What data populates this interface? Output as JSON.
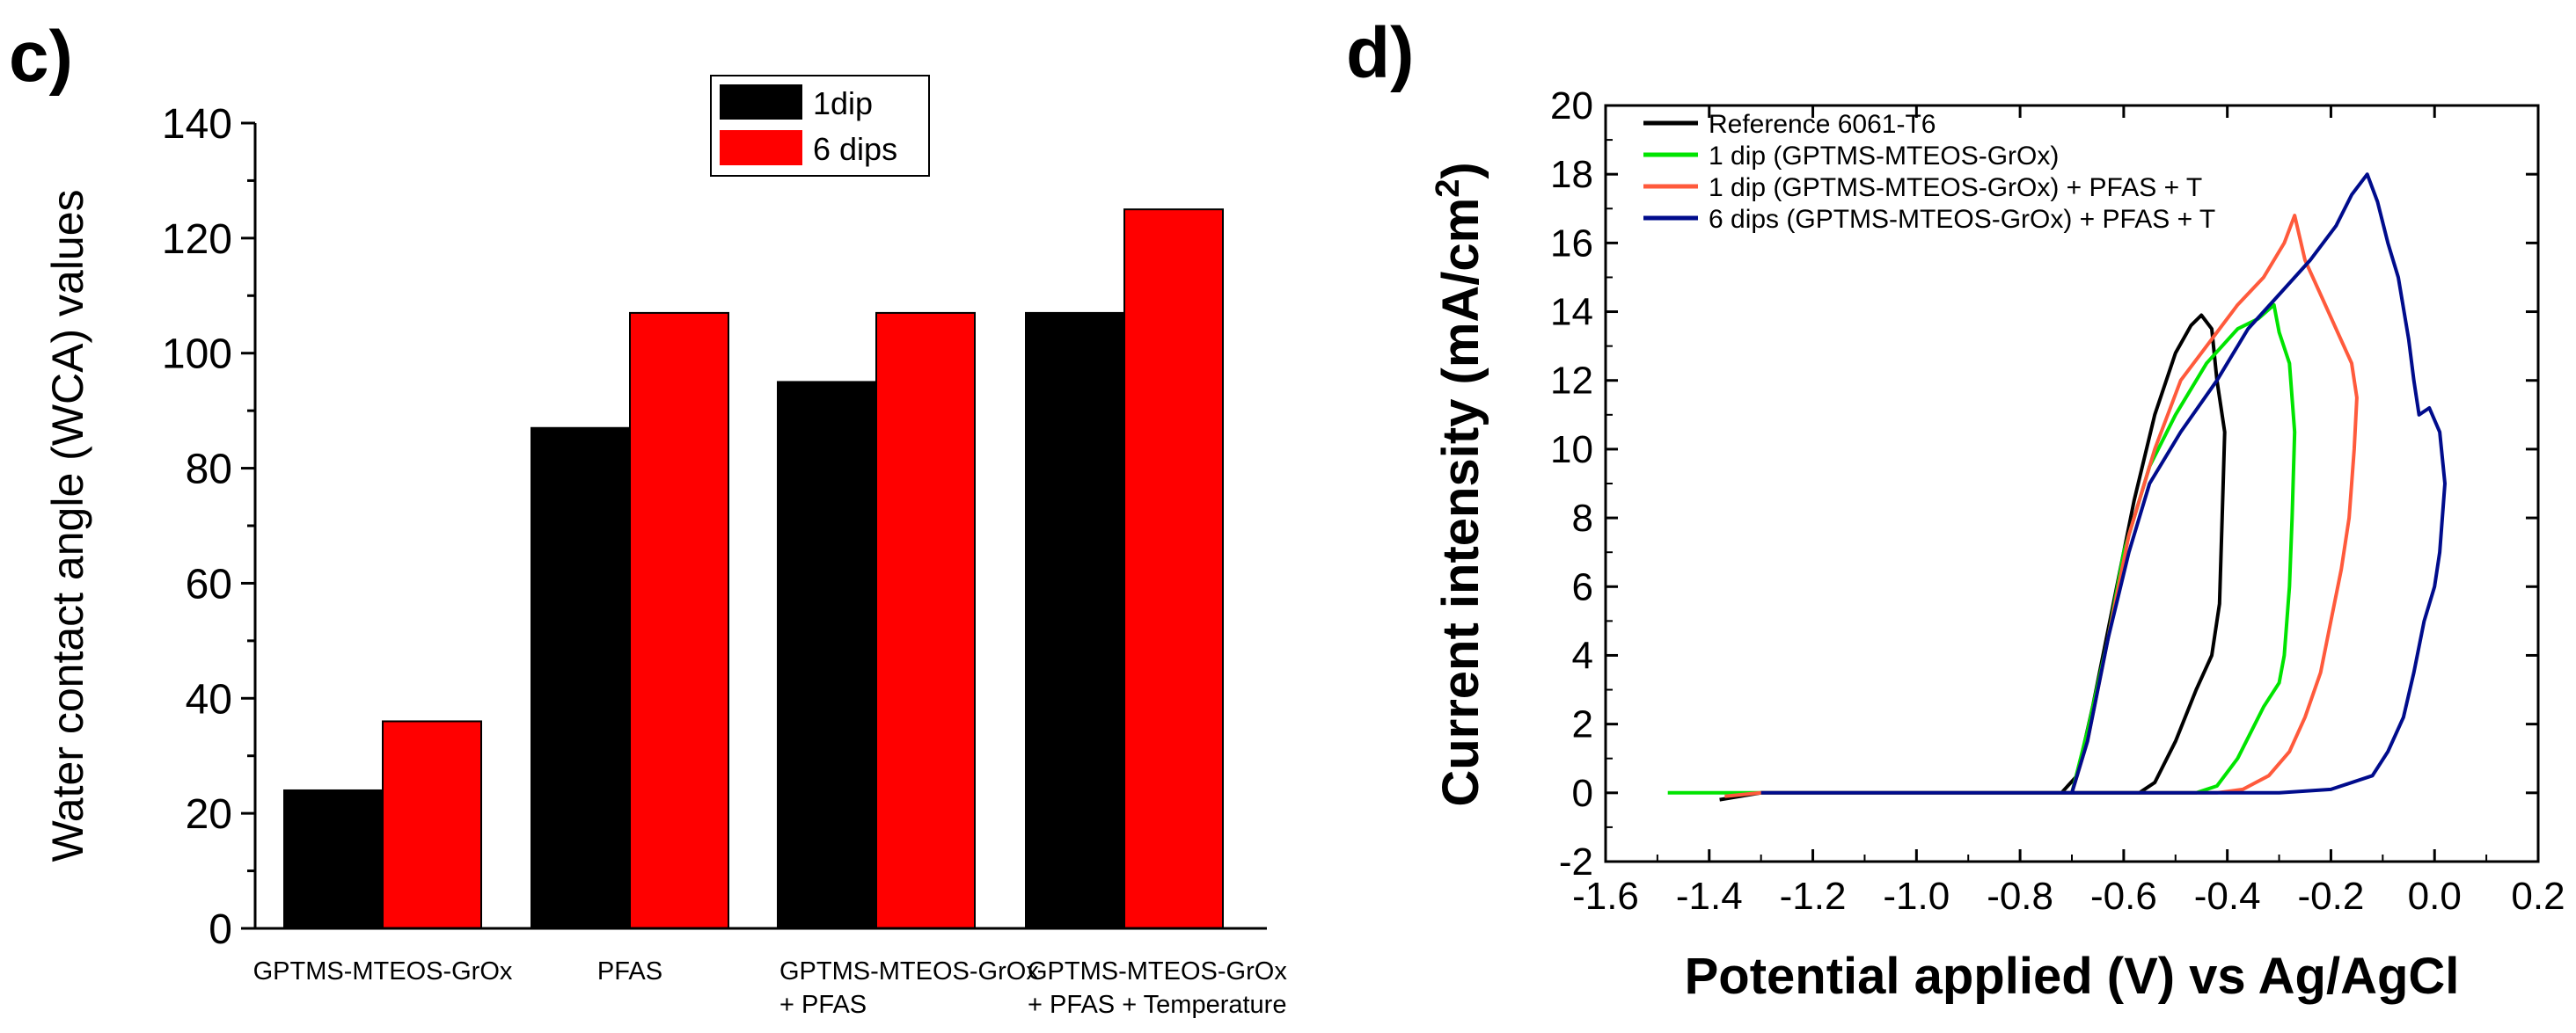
{
  "colors": {
    "bar_1dip": "#000000",
    "bar_6dips": "#ff0000",
    "ref": "#000000",
    "one_dip": "#00e400",
    "one_dip_pfas": "#ff5a3c",
    "six_dips_pfas": "#000c8c"
  },
  "chart_data": [
    {
      "type": "bar",
      "panel_label": "c)",
      "ylabel": "Water contact angle (WCA) values",
      "ylim": [
        0,
        140
      ],
      "yticks": [
        "0",
        "20",
        "40",
        "60",
        "80",
        "100",
        "120",
        "140"
      ],
      "categories": [
        [
          "GPTMS-MTEOS-GrOx"
        ],
        [
          "PFAS"
        ],
        [
          "GPTMS-MTEOS-GrOx",
          "+ PFAS"
        ],
        [
          "GPTMS-MTEOS-GrOx",
          "+ PFAS + Temperature"
        ]
      ],
      "series": [
        {
          "name": "1dip",
          "values": [
            24,
            87,
            95,
            107
          ]
        },
        {
          "name": "6 dips",
          "values": [
            36,
            107,
            107,
            125
          ]
        }
      ],
      "legend": "top-center"
    },
    {
      "type": "line",
      "panel_label": "d)",
      "xlabel": "Potential applied (V) vs Ag/AgCl",
      "ylabel": "Current intensity (mA/cm",
      "ylabel_sup": "2",
      "ylabel_close": ")",
      "xlim": [
        -1.6,
        0.2
      ],
      "ylim": [
        -2,
        20
      ],
      "xticks": [
        "-1.6",
        "-1.4",
        "-1.2",
        "-1.0",
        "-0.8",
        "-0.6",
        "-0.4",
        "-0.2",
        "0.0",
        "0.2"
      ],
      "yticks": [
        "-2",
        "0",
        "2",
        "4",
        "6",
        "8",
        "10",
        "12",
        "14",
        "16",
        "18",
        "20"
      ],
      "legend": "top-left",
      "series": [
        {
          "name": "Reference 6061-T6",
          "color_key": "ref",
          "points": [
            [
              -1.38,
              -0.2
            ],
            [
              -1.3,
              0
            ],
            [
              -0.72,
              0
            ],
            [
              -0.69,
              0.5
            ],
            [
              -0.66,
              2.5
            ],
            [
              -0.62,
              5.5
            ],
            [
              -0.58,
              8.5
            ],
            [
              -0.54,
              11
            ],
            [
              -0.5,
              12.8
            ],
            [
              -0.47,
              13.6
            ],
            [
              -0.45,
              13.9
            ],
            [
              -0.43,
              13.5
            ],
            [
              -0.42,
              12
            ],
            [
              -0.405,
              10.5
            ],
            [
              -0.41,
              8
            ],
            [
              -0.415,
              5.5
            ],
            [
              -0.43,
              4
            ],
            [
              -0.46,
              3
            ],
            [
              -0.5,
              1.5
            ],
            [
              -0.54,
              0.3
            ],
            [
              -0.57,
              0
            ],
            [
              -0.8,
              0
            ]
          ]
        },
        {
          "name": "1 dip (GPTMS-MTEOS-GrOx)",
          "color_key": "one_dip",
          "points": [
            [
              -1.48,
              0
            ],
            [
              -0.7,
              0
            ],
            [
              -0.67,
              1.8
            ],
            [
              -0.63,
              4.5
            ],
            [
              -0.6,
              7
            ],
            [
              -0.55,
              9.5
            ],
            [
              -0.5,
              11
            ],
            [
              -0.44,
              12.5
            ],
            [
              -0.38,
              13.5
            ],
            [
              -0.34,
              13.8
            ],
            [
              -0.31,
              14.2
            ],
            [
              -0.3,
              13.4
            ],
            [
              -0.28,
              12.5
            ],
            [
              -0.27,
              10.5
            ],
            [
              -0.275,
              8
            ],
            [
              -0.28,
              6
            ],
            [
              -0.29,
              4
            ],
            [
              -0.3,
              3.2
            ],
            [
              -0.33,
              2.5
            ],
            [
              -0.38,
              1
            ],
            [
              -0.42,
              0.2
            ],
            [
              -0.46,
              0
            ],
            [
              -0.8,
              0
            ]
          ]
        },
        {
          "name": "1 dip (GPTMS-MTEOS-GrOx) + PFAS + T",
          "color_key": "one_dip_pfas",
          "points": [
            [
              -1.37,
              -0.1
            ],
            [
              -1.3,
              0
            ],
            [
              -0.7,
              0
            ],
            [
              -0.67,
              1.5
            ],
            [
              -0.63,
              4.5
            ],
            [
              -0.59,
              7.5
            ],
            [
              -0.54,
              10
            ],
            [
              -0.49,
              12
            ],
            [
              -0.43,
              13.2
            ],
            [
              -0.38,
              14.2
            ],
            [
              -0.33,
              15
            ],
            [
              -0.29,
              16
            ],
            [
              -0.27,
              16.8
            ],
            [
              -0.25,
              15.5
            ],
            [
              -0.22,
              14.5
            ],
            [
              -0.19,
              13.5
            ],
            [
              -0.16,
              12.5
            ],
            [
              -0.15,
              11.5
            ],
            [
              -0.155,
              10
            ],
            [
              -0.165,
              8
            ],
            [
              -0.18,
              6.5
            ],
            [
              -0.2,
              5
            ],
            [
              -0.22,
              3.5
            ],
            [
              -0.25,
              2.2
            ],
            [
              -0.28,
              1.2
            ],
            [
              -0.32,
              0.5
            ],
            [
              -0.37,
              0.1
            ],
            [
              -0.42,
              0
            ],
            [
              -0.8,
              0
            ]
          ]
        },
        {
          "name": "6 dips (GPTMS-MTEOS-GrOx) + PFAS + T",
          "color_key": "six_dips_pfas",
          "points": [
            [
              -1.3,
              0
            ],
            [
              -0.7,
              0
            ],
            [
              -0.67,
              1.5
            ],
            [
              -0.63,
              4.5
            ],
            [
              -0.59,
              7
            ],
            [
              -0.55,
              9
            ],
            [
              -0.49,
              10.5
            ],
            [
              -0.42,
              12
            ],
            [
              -0.36,
              13.5
            ],
            [
              -0.3,
              14.5
            ],
            [
              -0.24,
              15.5
            ],
            [
              -0.19,
              16.5
            ],
            [
              -0.16,
              17.4
            ],
            [
              -0.13,
              18
            ],
            [
              -0.11,
              17.2
            ],
            [
              -0.09,
              16
            ],
            [
              -0.07,
              15
            ],
            [
              -0.05,
              13.2
            ],
            [
              -0.04,
              12
            ],
            [
              -0.03,
              11
            ],
            [
              -0.01,
              11.2
            ],
            [
              0.01,
              10.5
            ],
            [
              0.02,
              9
            ],
            [
              0.01,
              7
            ],
            [
              0,
              6
            ],
            [
              -0.02,
              5
            ],
            [
              -0.04,
              3.5
            ],
            [
              -0.06,
              2.2
            ],
            [
              -0.09,
              1.2
            ],
            [
              -0.12,
              0.5
            ],
            [
              -0.2,
              0.1
            ],
            [
              -0.3,
              0
            ],
            [
              -0.8,
              0
            ]
          ]
        }
      ]
    }
  ]
}
